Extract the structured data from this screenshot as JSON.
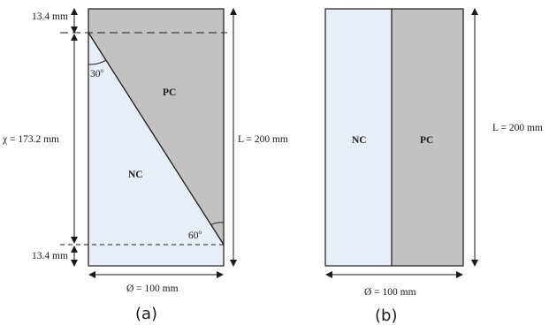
{
  "figure_a": {
    "top_cover": "13.4 mm",
    "bottom_cover": "13.4 mm",
    "chi_length": "χ = 173.2 mm",
    "length": "L = 200 mm",
    "diameter": "Ø = 100 mm",
    "angle_top": "30",
    "angle_bottom": "60",
    "degree_symbol": "o",
    "region_pc": "PC",
    "region_nc": "NC",
    "caption": "(a)",
    "colors": {
      "nc": "#e8eef8",
      "pc": "#c2c2c2",
      "line": "#1a1a1a"
    }
  },
  "figure_b": {
    "length": "L = 200 mm",
    "diameter": "Ø = 100 mm",
    "region_nc": "NC",
    "region_pc": "PC",
    "caption": "(b)",
    "colors": {
      "nc": "#e8eef8",
      "pc": "#c2c2c2",
      "line": "#1a1a1a"
    }
  }
}
